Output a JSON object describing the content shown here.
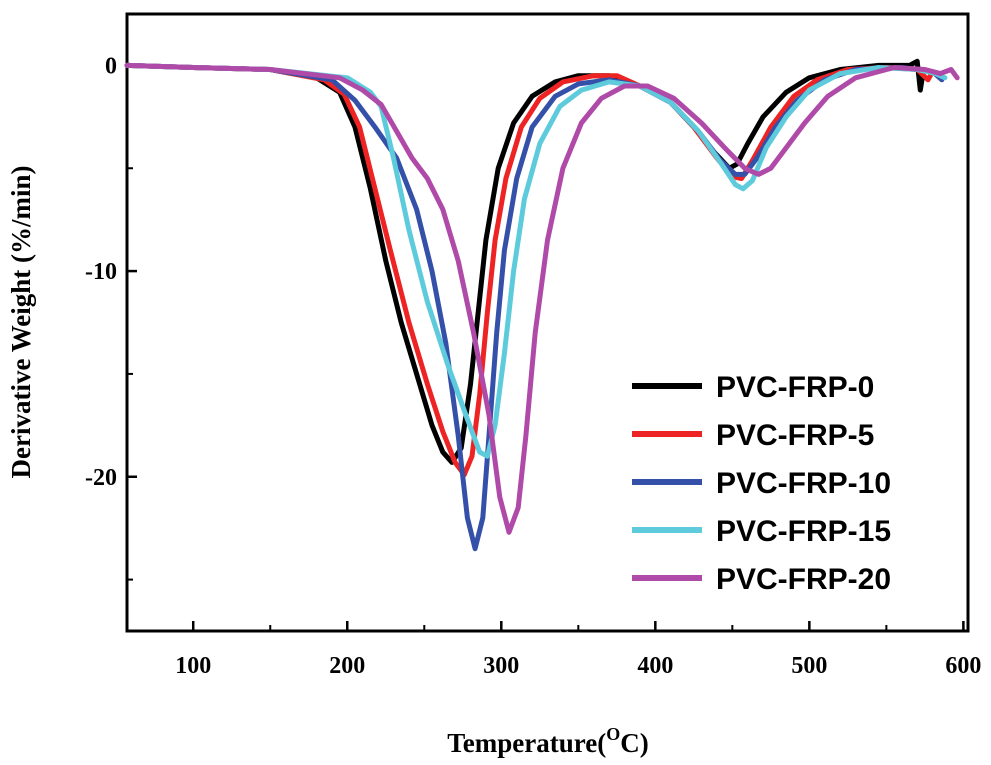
{
  "chart_data": {
    "type": "line",
    "title": "",
    "xlabel": "Temperature(",
    "xlabel_superscript": "O",
    "xlabel_suffix": "C)",
    "ylabel": "Derivative Weight (%/min)",
    "xlim": [
      57,
      603
    ],
    "ylim": [
      -27.5,
      2.5
    ],
    "xticks": [
      100,
      200,
      300,
      400,
      500,
      600
    ],
    "yticks": [
      0,
      -10,
      -20
    ],
    "grid": false,
    "legend_position": "bottom-right",
    "series": [
      {
        "name": "PVC-FRP-0",
        "color": "#000000",
        "points": [
          [
            57,
            0
          ],
          [
            100,
            -0.1
          ],
          [
            150,
            -0.2
          ],
          [
            180,
            -0.6
          ],
          [
            195,
            -1.3
          ],
          [
            205,
            -3
          ],
          [
            215,
            -6
          ],
          [
            225,
            -9.5
          ],
          [
            235,
            -12.5
          ],
          [
            245,
            -15
          ],
          [
            255,
            -17.5
          ],
          [
            262,
            -18.8
          ],
          [
            268,
            -19.3
          ],
          [
            274,
            -18.6
          ],
          [
            280,
            -15.5
          ],
          [
            285,
            -12
          ],
          [
            290,
            -8.5
          ],
          [
            298,
            -5
          ],
          [
            308,
            -2.8
          ],
          [
            320,
            -1.5
          ],
          [
            335,
            -0.8
          ],
          [
            350,
            -0.5
          ],
          [
            370,
            -0.5
          ],
          [
            390,
            -1
          ],
          [
            410,
            -1.8
          ],
          [
            425,
            -3
          ],
          [
            438,
            -4.2
          ],
          [
            448,
            -5
          ],
          [
            453,
            -4.8
          ],
          [
            460,
            -3.8
          ],
          [
            470,
            -2.5
          ],
          [
            485,
            -1.3
          ],
          [
            500,
            -0.6
          ],
          [
            520,
            -0.2
          ],
          [
            545,
            0
          ],
          [
            565,
            0
          ],
          [
            570,
            0.2
          ],
          [
            572,
            -1.2
          ],
          [
            574,
            -0.3
          ]
        ]
      },
      {
        "name": "PVC-FRP-5",
        "color": "#ee2424",
        "points": [
          [
            57,
            0
          ],
          [
            100,
            -0.1
          ],
          [
            150,
            -0.2
          ],
          [
            185,
            -0.7
          ],
          [
            198,
            -1.4
          ],
          [
            208,
            -3
          ],
          [
            218,
            -6
          ],
          [
            228,
            -9
          ],
          [
            240,
            -12.5
          ],
          [
            252,
            -15.5
          ],
          [
            262,
            -17.8
          ],
          [
            270,
            -19.3
          ],
          [
            276,
            -19.9
          ],
          [
            281,
            -19
          ],
          [
            286,
            -16
          ],
          [
            291,
            -12
          ],
          [
            296,
            -8.5
          ],
          [
            303,
            -5.5
          ],
          [
            313,
            -3
          ],
          [
            325,
            -1.6
          ],
          [
            340,
            -0.8
          ],
          [
            360,
            -0.5
          ],
          [
            375,
            -0.5
          ],
          [
            390,
            -1
          ],
          [
            410,
            -1.8
          ],
          [
            425,
            -3
          ],
          [
            440,
            -4.5
          ],
          [
            450,
            -5.4
          ],
          [
            456,
            -5.5
          ],
          [
            464,
            -4.5
          ],
          [
            475,
            -3
          ],
          [
            490,
            -1.5
          ],
          [
            505,
            -0.7
          ],
          [
            525,
            -0.2
          ],
          [
            550,
            -0.1
          ],
          [
            570,
            -0.2
          ],
          [
            577,
            -0.7
          ],
          [
            580,
            -0.3
          ]
        ]
      },
      {
        "name": "PVC-FRP-10",
        "color": "#3550a8",
        "points": [
          [
            57,
            0
          ],
          [
            100,
            -0.1
          ],
          [
            150,
            -0.2
          ],
          [
            190,
            -0.7
          ],
          [
            205,
            -1.7
          ],
          [
            218,
            -3
          ],
          [
            232,
            -4.5
          ],
          [
            245,
            -7
          ],
          [
            255,
            -10
          ],
          [
            264,
            -13.5
          ],
          [
            272,
            -18
          ],
          [
            278,
            -22
          ],
          [
            283,
            -23.5
          ],
          [
            288,
            -22
          ],
          [
            292,
            -18
          ],
          [
            297,
            -13
          ],
          [
            302,
            -9
          ],
          [
            310,
            -5.5
          ],
          [
            320,
            -3
          ],
          [
            335,
            -1.5
          ],
          [
            350,
            -0.9
          ],
          [
            370,
            -0.7
          ],
          [
            390,
            -1
          ],
          [
            410,
            -1.8
          ],
          [
            428,
            -3.2
          ],
          [
            442,
            -4.6
          ],
          [
            452,
            -5.3
          ],
          [
            458,
            -5.3
          ],
          [
            466,
            -4.5
          ],
          [
            478,
            -3
          ],
          [
            492,
            -1.7
          ],
          [
            510,
            -0.7
          ],
          [
            530,
            -0.2
          ],
          [
            560,
            -0.1
          ],
          [
            580,
            -0.3
          ],
          [
            586,
            -0.7
          ]
        ]
      },
      {
        "name": "PVC-FRP-15",
        "color": "#5ecbdc",
        "points": [
          [
            57,
            0
          ],
          [
            100,
            -0.1
          ],
          [
            150,
            -0.2
          ],
          [
            200,
            -0.6
          ],
          [
            215,
            -1.3
          ],
          [
            222,
            -2
          ],
          [
            230,
            -4.5
          ],
          [
            240,
            -8
          ],
          [
            252,
            -11.5
          ],
          [
            265,
            -14.5
          ],
          [
            277,
            -17
          ],
          [
            286,
            -18.8
          ],
          [
            291,
            -19
          ],
          [
            296,
            -17.5
          ],
          [
            302,
            -14
          ],
          [
            308,
            -10
          ],
          [
            315,
            -6.5
          ],
          [
            325,
            -3.8
          ],
          [
            338,
            -2
          ],
          [
            352,
            -1.2
          ],
          [
            370,
            -0.8
          ],
          [
            390,
            -1
          ],
          [
            410,
            -1.8
          ],
          [
            428,
            -3.2
          ],
          [
            443,
            -4.8
          ],
          [
            452,
            -5.8
          ],
          [
            457,
            -6
          ],
          [
            463,
            -5.6
          ],
          [
            472,
            -4
          ],
          [
            485,
            -2.5
          ],
          [
            500,
            -1.2
          ],
          [
            520,
            -0.4
          ],
          [
            545,
            -0.1
          ],
          [
            570,
            -0.2
          ],
          [
            582,
            -0.4
          ],
          [
            588,
            -0.6
          ]
        ]
      },
      {
        "name": "PVC-FRP-20",
        "color": "#b04aa8",
        "points": [
          [
            57,
            0
          ],
          [
            100,
            -0.1
          ],
          [
            150,
            -0.2
          ],
          [
            195,
            -0.6
          ],
          [
            210,
            -1.2
          ],
          [
            222,
            -1.9
          ],
          [
            232,
            -3.2
          ],
          [
            242,
            -4.5
          ],
          [
            252,
            -5.5
          ],
          [
            262,
            -7
          ],
          [
            272,
            -9.5
          ],
          [
            282,
            -13
          ],
          [
            292,
            -17
          ],
          [
            299,
            -21
          ],
          [
            305,
            -22.7
          ],
          [
            311,
            -21.5
          ],
          [
            316,
            -18
          ],
          [
            322,
            -13
          ],
          [
            330,
            -8.5
          ],
          [
            340,
            -5
          ],
          [
            352,
            -2.8
          ],
          [
            365,
            -1.6
          ],
          [
            380,
            -1
          ],
          [
            395,
            -1
          ],
          [
            412,
            -1.6
          ],
          [
            430,
            -2.8
          ],
          [
            445,
            -4
          ],
          [
            458,
            -5
          ],
          [
            467,
            -5.3
          ],
          [
            475,
            -5
          ],
          [
            485,
            -4
          ],
          [
            497,
            -2.8
          ],
          [
            512,
            -1.5
          ],
          [
            530,
            -0.6
          ],
          [
            555,
            -0.1
          ],
          [
            575,
            -0.2
          ],
          [
            585,
            -0.4
          ],
          [
            592,
            -0.2
          ],
          [
            596,
            -0.6
          ]
        ]
      }
    ]
  }
}
